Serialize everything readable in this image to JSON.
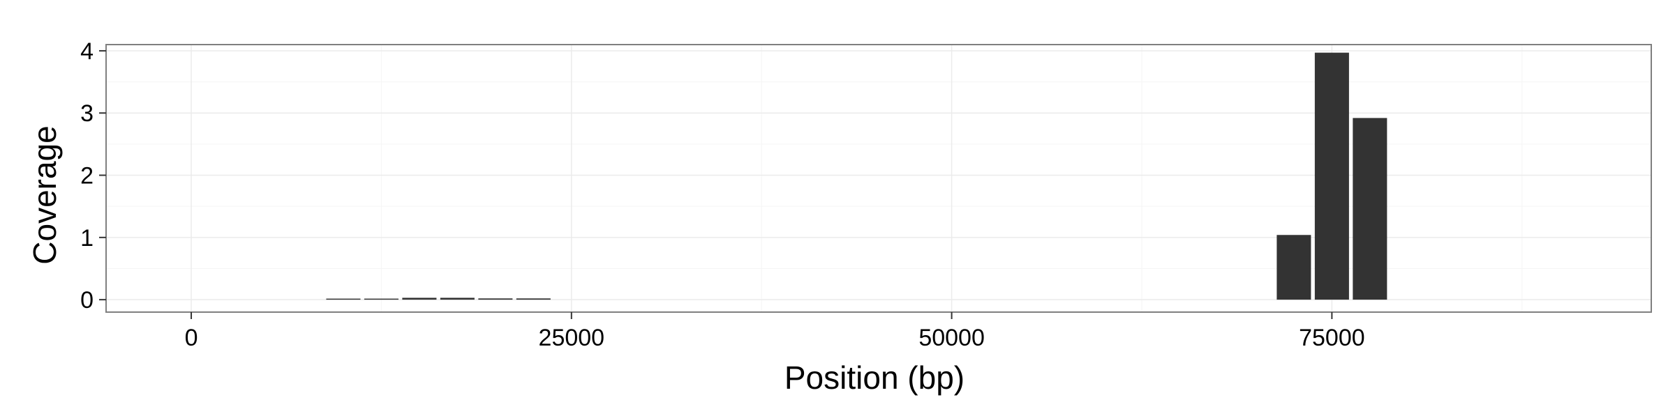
{
  "chart_data": {
    "type": "bar",
    "xlabel": "Position (bp)",
    "ylabel": "Coverage",
    "xlim": [
      -5600,
      96000
    ],
    "ylim": [
      -0.2,
      4.1
    ],
    "x_ticks": [
      0,
      25000,
      50000,
      75000
    ],
    "y_ticks": [
      0,
      1,
      2,
      3,
      4
    ],
    "grid": true,
    "bar_width": 2250,
    "x": [
      10000,
      12500,
      15000,
      17500,
      20000,
      22500,
      72500,
      75000,
      77500
    ],
    "values": [
      0.01,
      0.01,
      0.03,
      0.03,
      0.02,
      0.02,
      1.04,
      3.97,
      2.92
    ],
    "colors": {
      "bar": "#333333",
      "panel_border": "#7f7f7f",
      "grid_major": "#ebebeb",
      "grid_minor": "#f5f5f5"
    }
  }
}
